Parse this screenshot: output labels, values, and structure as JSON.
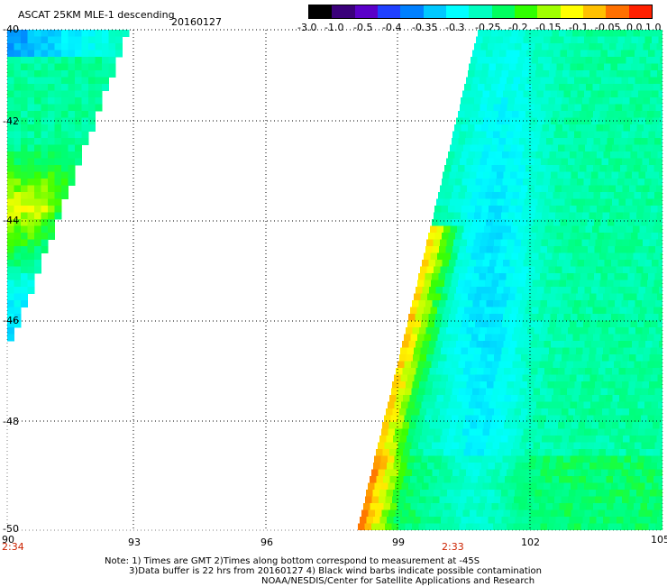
{
  "header": {
    "title": "ASCAT 25KM MLE-1 descending",
    "date": "20160127"
  },
  "colorbar": {
    "colors": [
      "#000000",
      "#3a007a",
      "#5a00c8",
      "#2040ff",
      "#0080ff",
      "#00c8ff",
      "#00ffff",
      "#00ffc0",
      "#00ff60",
      "#30ff00",
      "#a0ff00",
      "#ffff00",
      "#ffc000",
      "#ff7000",
      "#ff2000"
    ],
    "tick_labels": [
      "-3.0",
      "-1.0",
      "-0.5",
      "-0.4",
      "-0.35",
      "-0.3",
      "-0.25",
      "-0.2",
      "-0.15",
      "-0.1",
      "-0.05",
      "0.0",
      "1.0"
    ]
  },
  "axes": {
    "lon_ticks": [
      "90",
      "93",
      "96",
      "99",
      "102",
      "105"
    ],
    "lat_ticks": [
      "-40",
      "-42",
      "-44",
      "-46",
      "-48",
      "-50"
    ],
    "time_labels": [
      "2:34",
      "2:33"
    ],
    "time_color": "#cc2200"
  },
  "notes": {
    "line1": "Note: 1) Times are GMT 2)Times along bottom correspond to measurement at -45S",
    "line2": "3)Data buffer is 22 hrs from 20160127 4) Black wind barbs indicate possible contamination",
    "line3": "NOAA/NESDIS/Center for Satellite Applications and Research"
  }
}
